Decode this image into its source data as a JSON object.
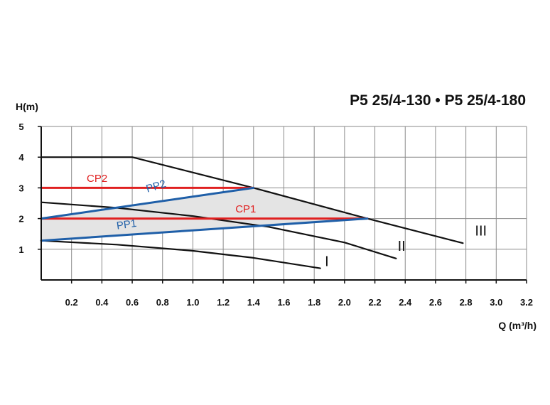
{
  "chart_data": {
    "type": "line",
    "title": "P5 25/4-130 • P5 25/4-180",
    "ylabel": "H(m)",
    "xlabel": "Q (m³/h)",
    "xlim": [
      0,
      3.2
    ],
    "ylim": [
      0,
      5
    ],
    "grid": true,
    "x_ticks": [
      "0.2",
      "0.4",
      "0.6",
      "0.8",
      "1.0",
      "1.2",
      "1.4",
      "1.6",
      "1.8",
      "2.0",
      "2.2",
      "2.4",
      "2.6",
      "2.8",
      "3.0",
      "3.2"
    ],
    "y_ticks": [
      "1",
      "2",
      "3",
      "4",
      "5"
    ],
    "colors": {
      "curve": "#111111",
      "cp": "#e02020",
      "pp": "#1f5fa8",
      "region": "#e4e4e4"
    },
    "series": [
      {
        "name": "I",
        "color": "#111111",
        "points": [
          [
            0,
            1.28
          ],
          [
            0.5,
            1.15
          ],
          [
            1.0,
            0.95
          ],
          [
            1.4,
            0.72
          ],
          [
            1.84,
            0.38
          ]
        ]
      },
      {
        "name": "II",
        "color": "#111111",
        "points": [
          [
            0,
            2.53
          ],
          [
            0.5,
            2.35
          ],
          [
            1.0,
            2.08
          ],
          [
            1.5,
            1.73
          ],
          [
            2.0,
            1.22
          ],
          [
            2.34,
            0.7
          ]
        ]
      },
      {
        "name": "III",
        "color": "#111111",
        "points": [
          [
            0,
            4.0
          ],
          [
            0.6,
            4.0
          ],
          [
            1.4,
            3.0
          ],
          [
            2.15,
            2.0
          ],
          [
            2.78,
            1.2
          ]
        ]
      },
      {
        "name": "CP1",
        "color": "#e02020",
        "points": [
          [
            0,
            2.0
          ],
          [
            2.15,
            2.0
          ]
        ]
      },
      {
        "name": "CP2",
        "color": "#e02020",
        "points": [
          [
            0,
            3.0
          ],
          [
            1.4,
            3.0
          ]
        ]
      },
      {
        "name": "PP1",
        "color": "#1f5fa8",
        "points": [
          [
            0,
            1.28
          ],
          [
            2.15,
            2.0
          ]
        ]
      },
      {
        "name": "PP2",
        "color": "#1f5fa8",
        "points": [
          [
            0,
            2.0
          ],
          [
            1.4,
            3.0
          ]
        ]
      }
    ],
    "shaded_region": [
      [
        0,
        1.28
      ],
      [
        2.15,
        2.0
      ],
      [
        1.4,
        3.0
      ],
      [
        0,
        2.0
      ]
    ],
    "labels": [
      {
        "text": "CP2",
        "x": 0.3,
        "y": 3.2,
        "color": "#e02020"
      },
      {
        "text": "PP2",
        "x": 0.7,
        "y": 2.85,
        "color": "#1f5fa8",
        "angle": -17
      },
      {
        "text": "CP1",
        "x": 1.28,
        "y": 2.2,
        "color": "#e02020"
      },
      {
        "text": "PP1",
        "x": 0.5,
        "y": 1.65,
        "color": "#1f5fa8",
        "angle": -8
      },
      {
        "text": "I",
        "x": 1.87,
        "y": 0.45,
        "color": "#111111"
      },
      {
        "text": "II",
        "x": 2.35,
        "y": 0.95,
        "color": "#111111"
      },
      {
        "text": "III",
        "x": 2.86,
        "y": 1.45,
        "color": "#111111"
      }
    ]
  }
}
